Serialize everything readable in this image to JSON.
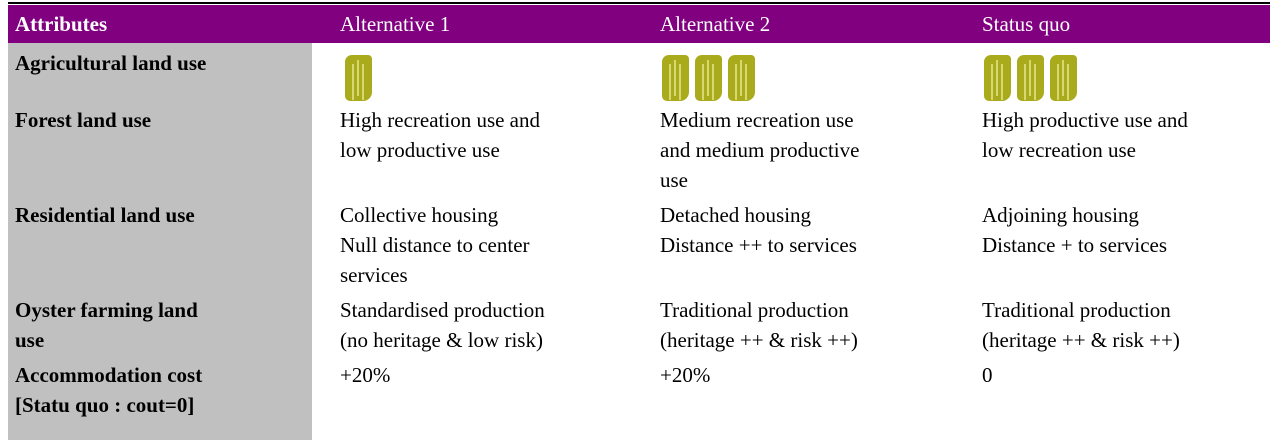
{
  "table": {
    "header": [
      "Attributes",
      "Alternative 1",
      "Alternative 2",
      "Status quo"
    ],
    "rows": [
      {
        "attribute": [
          "Agricultural land use"
        ],
        "cells": [
          [],
          [],
          []
        ]
      },
      {
        "attribute": [
          "Forest land use"
        ],
        "cells": [
          [
            "High recreation use and",
            "low productive use"
          ],
          [
            "Medium recreation use",
            "and medium productive",
            "use"
          ],
          [
            "High productive use and",
            "low recreation use"
          ]
        ]
      },
      {
        "attribute": [
          "Residential land use"
        ],
        "cells": [
          [
            "Collective housing",
            "Null distance to center",
            "services"
          ],
          [
            "Detached housing",
            "Distance ++ to services"
          ],
          [
            "Adjoining housing",
            "Distance + to services"
          ]
        ]
      },
      {
        "attribute": [
          "Oyster farming land",
          "use"
        ],
        "cells": [
          [
            "Standardised production",
            "(no heritage & low risk)"
          ],
          [
            "Traditional production",
            "(heritage ++ & risk ++)"
          ],
          [
            "Traditional production",
            "(heritage ++ & risk ++)"
          ]
        ]
      },
      {
        "attribute": [
          "Accommodation cost",
          "[Statu quo : cout=0]"
        ],
        "cells": [
          [
            "+20%"
          ],
          [
            "+20%"
          ],
          [
            "0"
          ]
        ]
      }
    ]
  }
}
